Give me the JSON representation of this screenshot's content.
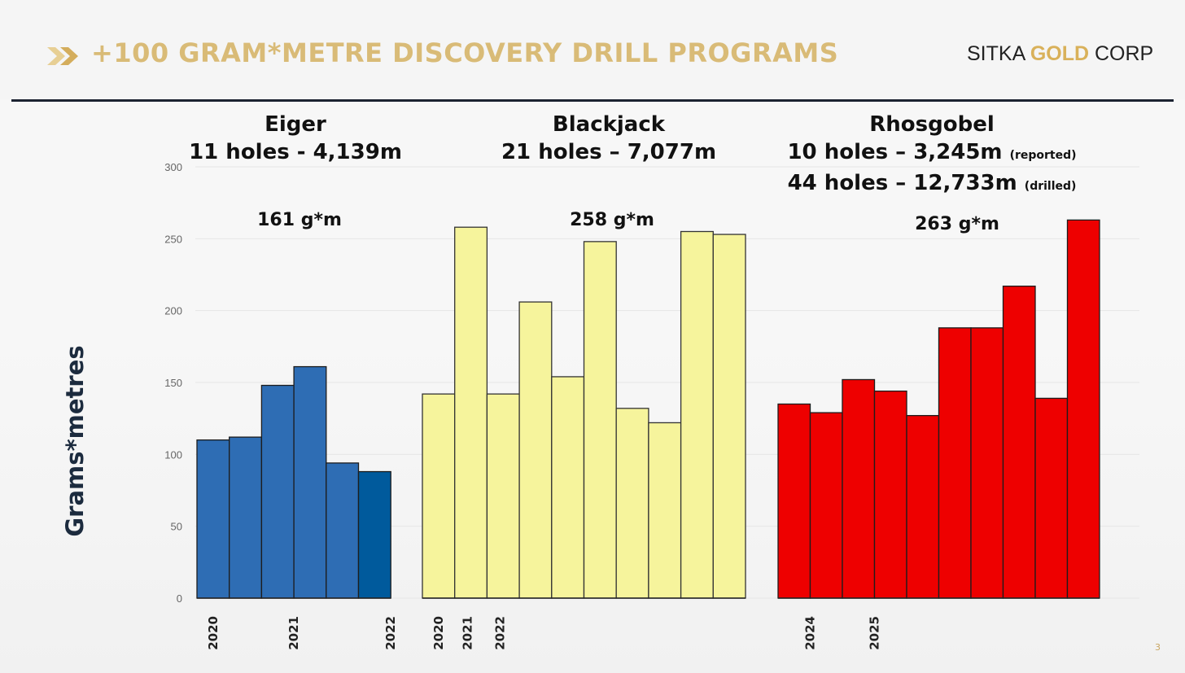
{
  "title": "+100 GRAM*METRE DISCOVERY DRILL PROGRAMS",
  "logo": {
    "part1": "SITKA ",
    "part2": "GOLD",
    "part3": " CORP"
  },
  "page_number": "3",
  "colors": {
    "title_gold": "#d9bb77",
    "eiger": "#2e6db4",
    "eiger_last": "#005a9c",
    "blackjack": "#f6f49c",
    "rhosgobel": "#ee0000",
    "divider": "#1c2331"
  },
  "chart_data": {
    "type": "bar",
    "ylabel": "Grams*metres",
    "ylim": [
      0,
      300
    ],
    "yticks": [
      0,
      50,
      100,
      150,
      200,
      250,
      300
    ],
    "groups": [
      {
        "name": "Eiger",
        "subtitle_lines": [
          {
            "text": "11 holes - 4,139m",
            "note": ""
          }
        ],
        "total_label": "161 g*m",
        "values": [
          110,
          112,
          148,
          161,
          94,
          88
        ],
        "year_labels": [
          {
            "label": "2020",
            "bar_index": 0
          },
          {
            "label": "2021",
            "bar_index": 2.5
          },
          {
            "label": "2022",
            "bar_index": 5.5
          }
        ]
      },
      {
        "name": "Blackjack",
        "subtitle_lines": [
          {
            "text": "21 holes – 7,077m",
            "note": ""
          }
        ],
        "total_label": "258 g*m",
        "values": [
          142,
          258,
          142,
          206,
          154,
          248,
          132,
          122,
          255,
          253
        ],
        "year_labels": [
          {
            "label": "2020",
            "bar_index": 0
          },
          {
            "label": "2021",
            "bar_index": 0.9
          },
          {
            "label": "2022",
            "bar_index": 1.9
          }
        ]
      },
      {
        "name": "Rhosgobel",
        "subtitle_lines": [
          {
            "text": "10 holes – 3,245m",
            "note": "(reported)"
          },
          {
            "text": "44 holes – 12,733m",
            "note": "(drilled)"
          }
        ],
        "total_label": "263 g*m",
        "values": [
          135,
          129,
          152,
          144,
          127,
          188,
          188,
          217,
          139,
          263
        ],
        "year_labels": [
          {
            "label": "2024",
            "bar_index": 0.5
          },
          {
            "label": "2025",
            "bar_index": 2.5
          }
        ]
      }
    ]
  }
}
